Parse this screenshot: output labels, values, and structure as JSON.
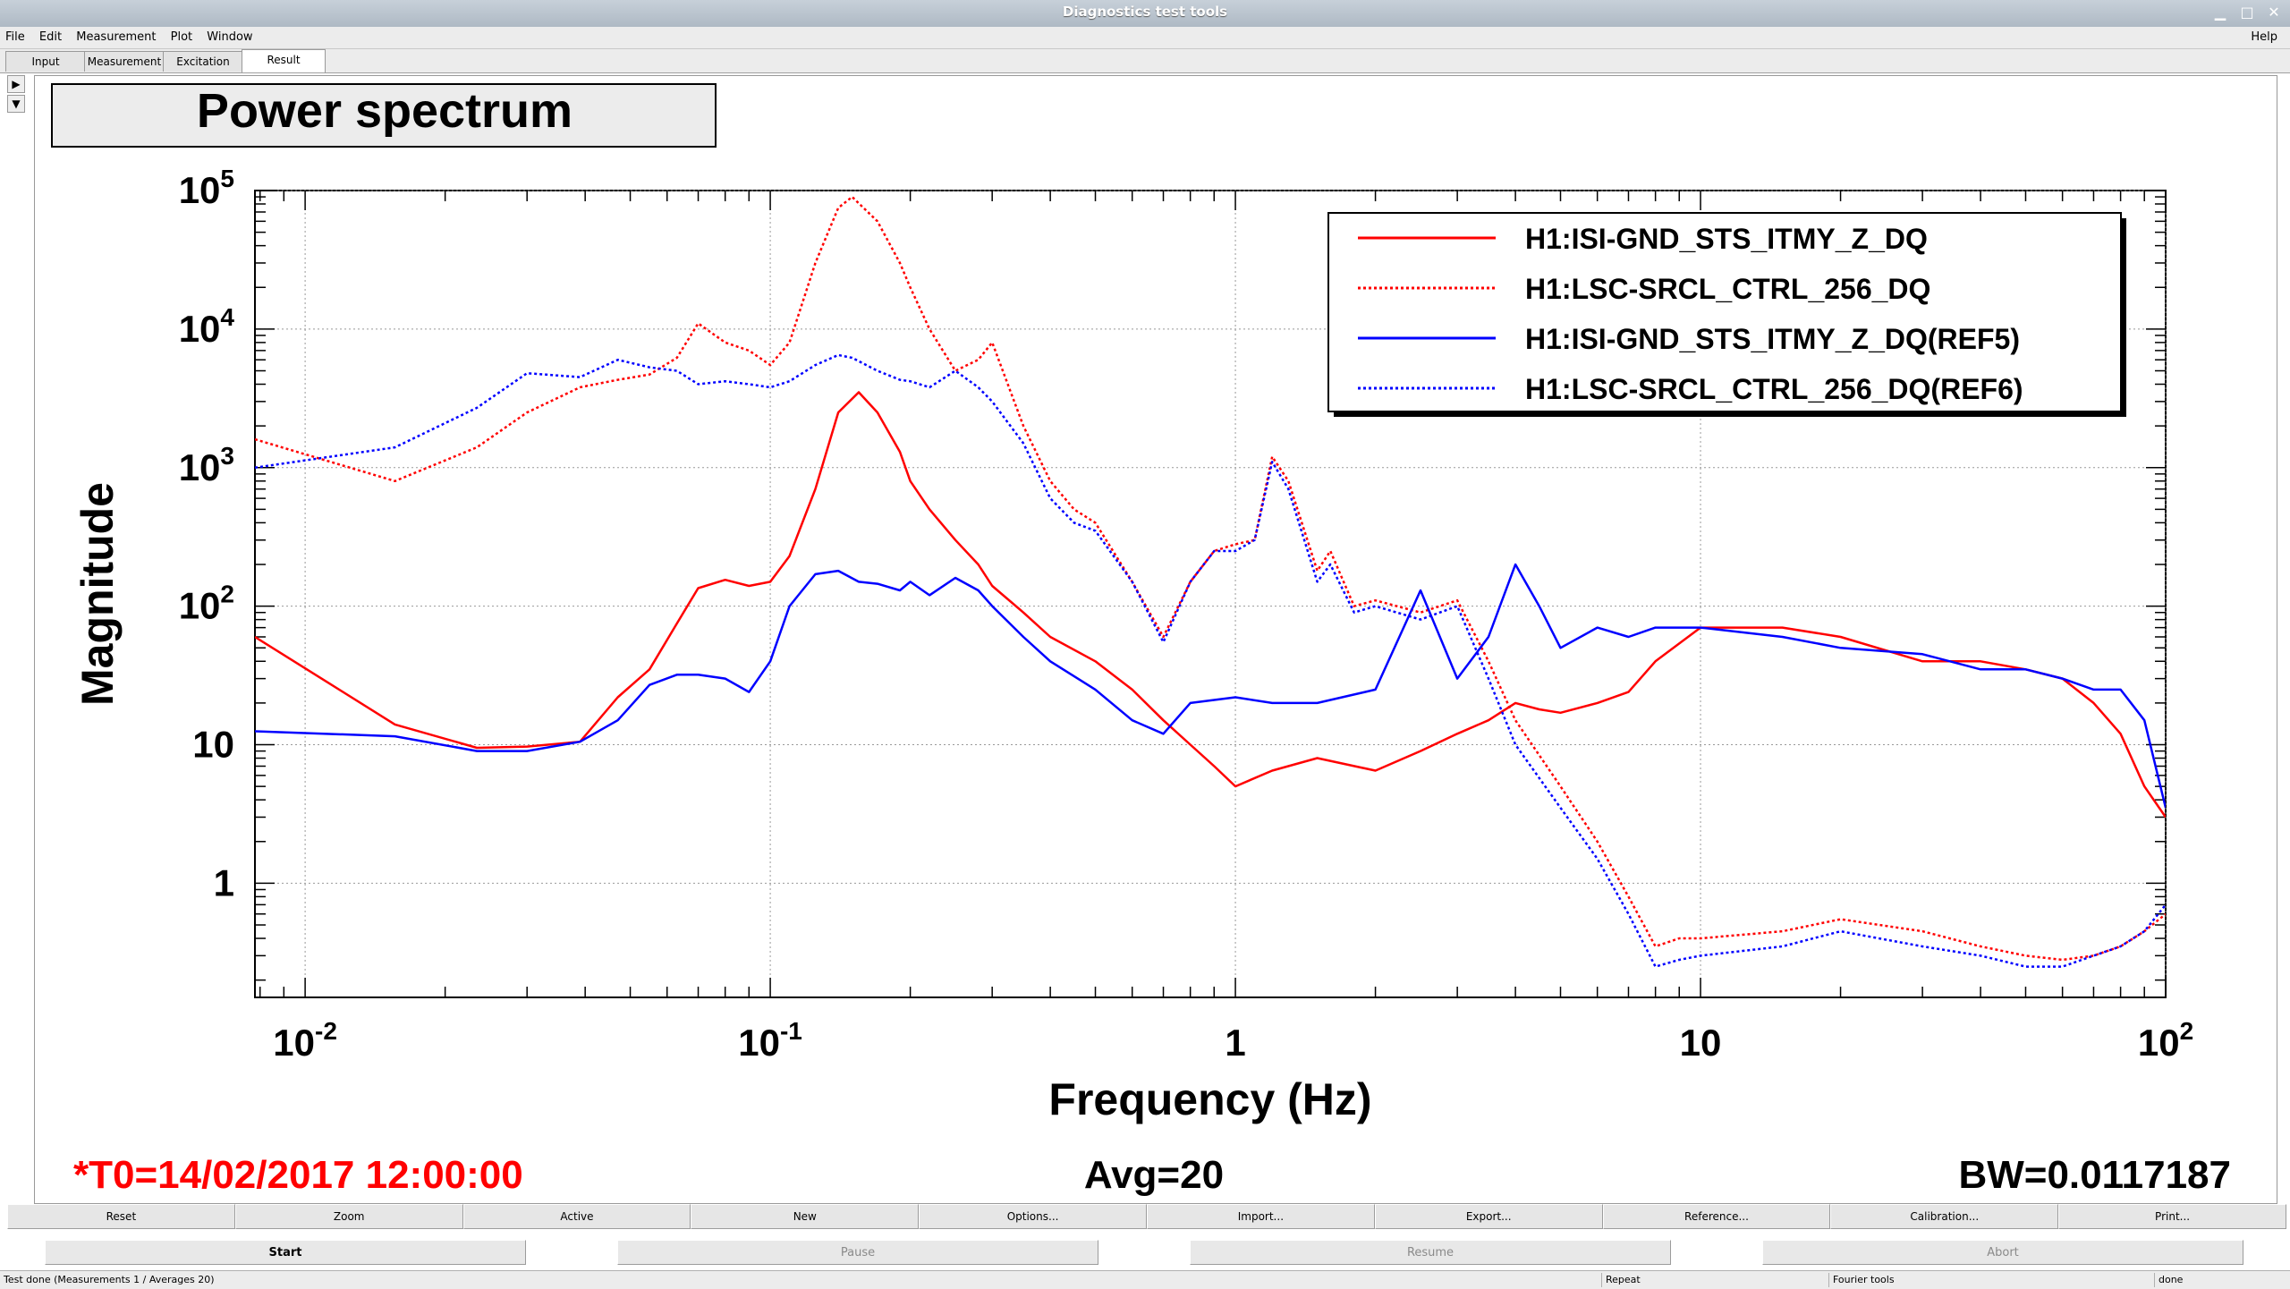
{
  "window": {
    "title": "Diagnostics test tools"
  },
  "menubar": {
    "items": [
      "File",
      "Edit",
      "Measurement",
      "Plot",
      "Window"
    ],
    "help": "Help"
  },
  "tabs": [
    {
      "label": "Input",
      "active": false
    },
    {
      "label": "Measurement",
      "active": false
    },
    {
      "label": "Excitation",
      "active": false
    },
    {
      "label": "Result",
      "active": true
    }
  ],
  "plot_info": {
    "t0": "*T0=14/02/2017 12:00:00",
    "avg": "Avg=20",
    "bw": "BW=0.0117187"
  },
  "chart_data": {
    "type": "line",
    "title": "Power spectrum",
    "xlabel": "Frequency (Hz)",
    "ylabel": "Magnitude",
    "xscale": "log",
    "yscale": "log",
    "xlim": [
      0.0078,
      100
    ],
    "ylim": [
      0.15,
      100000
    ],
    "x_ticks": [
      {
        "value": 0.01,
        "base": "10",
        "exp": "-2"
      },
      {
        "value": 0.1,
        "base": "10",
        "exp": "-1"
      },
      {
        "value": 1,
        "base": "1",
        "exp": ""
      },
      {
        "value": 10,
        "base": "10",
        "exp": ""
      },
      {
        "value": 100,
        "base": "10",
        "exp": "2"
      }
    ],
    "y_ticks": [
      {
        "value": 1,
        "base": "1",
        "exp": ""
      },
      {
        "value": 10,
        "base": "10",
        "exp": ""
      },
      {
        "value": 100,
        "base": "10",
        "exp": "2"
      },
      {
        "value": 1000,
        "base": "10",
        "exp": "3"
      },
      {
        "value": 10000,
        "base": "10",
        "exp": "4"
      },
      {
        "value": 100000,
        "base": "10",
        "exp": "5"
      }
    ],
    "grid": true,
    "legend_position": "top-right",
    "series": [
      {
        "name": "H1:ISI-GND_STS_ITMY_Z_DQ",
        "color": "#ff0000",
        "dash": "solid",
        "x": [
          0.0078,
          0.0156,
          0.0234,
          0.03,
          0.039,
          0.047,
          0.055,
          0.063,
          0.07,
          0.08,
          0.09,
          0.1,
          0.11,
          0.125,
          0.14,
          0.155,
          0.17,
          0.19,
          0.2,
          0.22,
          0.25,
          0.28,
          0.3,
          0.35,
          0.4,
          0.5,
          0.6,
          0.7,
          0.8,
          0.9,
          1.0,
          1.2,
          1.5,
          2.0,
          2.5,
          3.0,
          3.5,
          4.0,
          4.5,
          5,
          6,
          7,
          8,
          10,
          15,
          20,
          30,
          40,
          50,
          60,
          70,
          80,
          90,
          100
        ],
        "y": [
          60,
          14,
          9.5,
          9.7,
          10.5,
          22,
          35,
          75,
          135,
          155,
          140,
          150,
          230,
          700,
          2500,
          3500,
          2500,
          1300,
          800,
          500,
          300,
          200,
          140,
          90,
          60,
          40,
          25,
          15,
          10,
          7,
          5,
          6.5,
          8,
          6.5,
          9,
          12,
          15,
          20,
          18,
          17,
          20,
          24,
          40,
          70,
          70,
          60,
          40,
          40,
          35,
          30,
          20,
          12,
          5,
          3
        ]
      },
      {
        "name": "H1:LSC-SRCL_CTRL_256_DQ",
        "color": "#ff0000",
        "dash": "dotted",
        "x": [
          0.0078,
          0.0156,
          0.0234,
          0.03,
          0.039,
          0.047,
          0.055,
          0.063,
          0.07,
          0.08,
          0.09,
          0.1,
          0.11,
          0.125,
          0.14,
          0.15,
          0.17,
          0.19,
          0.2,
          0.22,
          0.25,
          0.28,
          0.3,
          0.35,
          0.4,
          0.45,
          0.5,
          0.6,
          0.7,
          0.8,
          0.9,
          1.0,
          1.1,
          1.2,
          1.3,
          1.5,
          1.6,
          1.8,
          2.0,
          2.5,
          3.0,
          3.5,
          4,
          5,
          6,
          7,
          8,
          9,
          10,
          15,
          20,
          30,
          40,
          50,
          60,
          70,
          80,
          90,
          100
        ],
        "y": [
          1600,
          800,
          1400,
          2500,
          3800,
          4300,
          4700,
          6200,
          11000,
          8000,
          7000,
          5500,
          8000,
          30000,
          75000,
          90000,
          60000,
          30000,
          20000,
          10000,
          5000,
          6000,
          8000,
          2000,
          800,
          500,
          400,
          150,
          60,
          150,
          250,
          280,
          300,
          1200,
          800,
          180,
          250,
          100,
          110,
          90,
          110,
          40,
          15,
          5,
          2,
          0.8,
          0.35,
          0.4,
          0.4,
          0.45,
          0.55,
          0.45,
          0.35,
          0.3,
          0.28,
          0.3,
          0.35,
          0.45,
          0.6
        ]
      },
      {
        "name": "H1:ISI-GND_STS_ITMY_Z_DQ(REF5)",
        "color": "#0000ff",
        "dash": "solid",
        "x": [
          0.0078,
          0.0156,
          0.0234,
          0.03,
          0.039,
          0.047,
          0.055,
          0.063,
          0.07,
          0.08,
          0.09,
          0.1,
          0.11,
          0.125,
          0.14,
          0.155,
          0.17,
          0.19,
          0.2,
          0.22,
          0.25,
          0.28,
          0.3,
          0.35,
          0.4,
          0.5,
          0.6,
          0.7,
          0.8,
          1.0,
          1.2,
          1.5,
          2.0,
          2.5,
          3.0,
          3.5,
          4.0,
          4.5,
          5,
          6,
          7,
          8,
          10,
          15,
          20,
          30,
          40,
          50,
          60,
          70,
          80,
          90,
          100
        ],
        "y": [
          12.5,
          11.5,
          9,
          9,
          10.5,
          15,
          27,
          32,
          32,
          30,
          24,
          40,
          100,
          170,
          180,
          150,
          145,
          130,
          150,
          120,
          160,
          130,
          100,
          60,
          40,
          25,
          15,
          12,
          20,
          22,
          20,
          20,
          25,
          130,
          30,
          60,
          200,
          100,
          50,
          70,
          60,
          70,
          70,
          60,
          50,
          45,
          35,
          35,
          30,
          25,
          25,
          15,
          3.5
        ]
      },
      {
        "name": "H1:LSC-SRCL_CTRL_256_DQ(REF6)",
        "color": "#0000ff",
        "dash": "dotted",
        "x": [
          0.0078,
          0.0156,
          0.0234,
          0.03,
          0.039,
          0.047,
          0.055,
          0.063,
          0.07,
          0.08,
          0.09,
          0.1,
          0.11,
          0.125,
          0.14,
          0.15,
          0.17,
          0.19,
          0.2,
          0.22,
          0.25,
          0.28,
          0.3,
          0.35,
          0.4,
          0.45,
          0.5,
          0.6,
          0.7,
          0.8,
          0.9,
          1.0,
          1.1,
          1.2,
          1.3,
          1.5,
          1.6,
          1.8,
          2.0,
          2.5,
          3.0,
          3.5,
          4,
          5,
          6,
          7,
          8,
          9,
          10,
          15,
          20,
          30,
          40,
          50,
          60,
          70,
          80,
          90,
          100
        ],
        "y": [
          1000,
          1400,
          2700,
          4800,
          4500,
          6000,
          5300,
          5000,
          4000,
          4200,
          4000,
          3800,
          4200,
          5500,
          6500,
          6200,
          5000,
          4300,
          4200,
          3800,
          5000,
          3800,
          3000,
          1500,
          600,
          400,
          350,
          150,
          55,
          150,
          250,
          250,
          300,
          1100,
          700,
          150,
          200,
          90,
          100,
          80,
          100,
          30,
          10,
          3.5,
          1.5,
          0.6,
          0.25,
          0.28,
          0.3,
          0.35,
          0.45,
          0.35,
          0.3,
          0.25,
          0.25,
          0.3,
          0.35,
          0.45,
          0.7
        ]
      }
    ]
  },
  "toolbar1": [
    "Reset",
    "Zoom",
    "Active",
    "New",
    "Options...",
    "Import...",
    "Export...",
    "Reference...",
    "Calibration...",
    "Print..."
  ],
  "toolbar2": {
    "start": "Start",
    "pause": "Pause",
    "resume": "Resume",
    "abort": "Abort"
  },
  "statusbar": {
    "message": "Test done (Measurements 1 / Averages 20)",
    "repeat": "Repeat",
    "tool": "Fourier tools",
    "state": "done"
  }
}
